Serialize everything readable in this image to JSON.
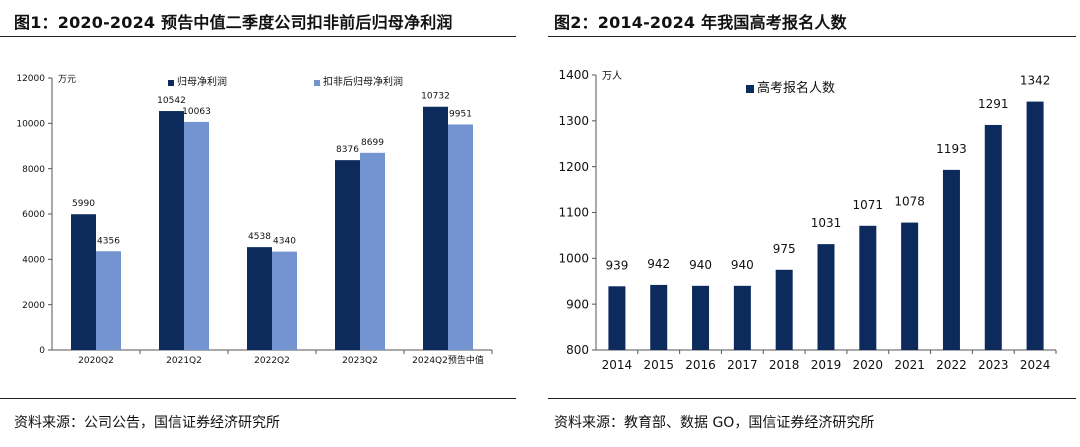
{
  "charts": [
    {
      "title": "图1：2020-2024 预告中值二季度公司扣非前后归母净利润",
      "source": "资料来源：公司公告，国信证券经济研究所",
      "chart_data": {
        "type": "bar",
        "unit": "万元",
        "categories": [
          "2020Q2",
          "2021Q2",
          "2022Q2",
          "2023Q2",
          "2024Q2预告中值"
        ],
        "series": [
          {
            "name": "归母净利润",
            "values": [
              5990,
              10542,
              4538,
              8376,
              10732
            ],
            "color": "#0c2a5c"
          },
          {
            "name": "扣非后归母净利润",
            "values": [
              4356,
              10063,
              4340,
              8699,
              9951
            ],
            "color": "#7393d1"
          }
        ],
        "ylim": [
          0,
          12000
        ],
        "yticks": [
          0,
          2000,
          4000,
          6000,
          8000,
          10000,
          12000
        ],
        "legend": "top"
      }
    },
    {
      "title": "图2：2014-2024 年我国高考报名人数",
      "source": "资料来源：教育部、数据 GO，国信证券经济研究所",
      "chart_data": {
        "type": "bar",
        "unit": "万人",
        "categories": [
          "2014",
          "2015",
          "2016",
          "2017",
          "2018",
          "2019",
          "2020",
          "2021",
          "2022",
          "2023",
          "2024"
        ],
        "series": [
          {
            "name": "高考报名人数",
            "values": [
              939,
              942,
              940,
              940,
              975,
              1031,
              1071,
              1078,
              1193,
              1291,
              1342
            ],
            "color": "#0c2a5c"
          }
        ],
        "ylim": [
          800,
          1400
        ],
        "yticks": [
          800,
          900,
          1000,
          1100,
          1200,
          1300,
          1400
        ],
        "legend": "top-left"
      }
    }
  ]
}
